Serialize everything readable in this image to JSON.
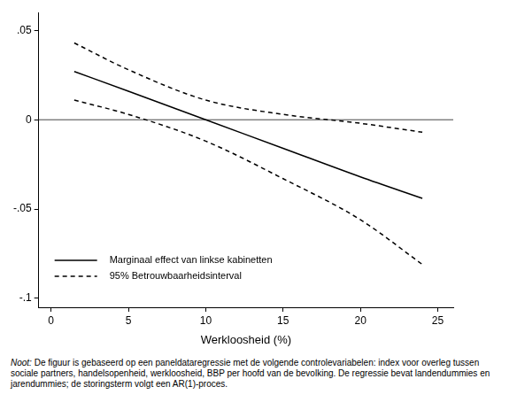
{
  "chart_data": {
    "type": "line",
    "x_label": "Werkloosheid (%)",
    "x": [
      1.5,
      5,
      10,
      15,
      20,
      24
    ],
    "series": [
      {
        "name": "Marginaal effect van linkse kabinetten",
        "color": "#000000",
        "line_style": "solid",
        "values": [
          0.027,
          0.016,
          0.0,
          -0.016,
          -0.032,
          -0.044
        ]
      },
      {
        "name": "95% Betrouwbaarheidsinterval",
        "color": "#000000",
        "line_style": "dashed",
        "upper": [
          0.043,
          0.028,
          0.011,
          0.003,
          -0.002,
          -0.007
        ],
        "lower": [
          0.011,
          0.003,
          -0.012,
          -0.033,
          -0.056,
          -0.081
        ]
      }
    ],
    "reference_y": 0,
    "xlim": [
      -0.8,
      26
    ],
    "xticks": [
      0,
      5,
      10,
      15,
      20,
      25
    ],
    "ylim": [
      -0.105,
      0.06
    ],
    "yticks": [
      {
        "value": -0.1,
        "label": "-.1"
      },
      {
        "value": -0.05,
        "label": "-.05"
      },
      0,
      {
        "value": 0.05,
        "label": ".05"
      }
    ],
    "grid": false,
    "legend": "lower left",
    "note_label": "Noot:",
    "note": "De figuur is gebaseerd op een paneldataregressie met de volgende controlevariabelen: index voor overleg tussen sociale partners, handelsopenheid, werkloosheid, BBP per hoofd van de bevolking. De regressie bevat landendummies en jarendummies; de storingsterm volgt een AR(1)-proces."
  }
}
